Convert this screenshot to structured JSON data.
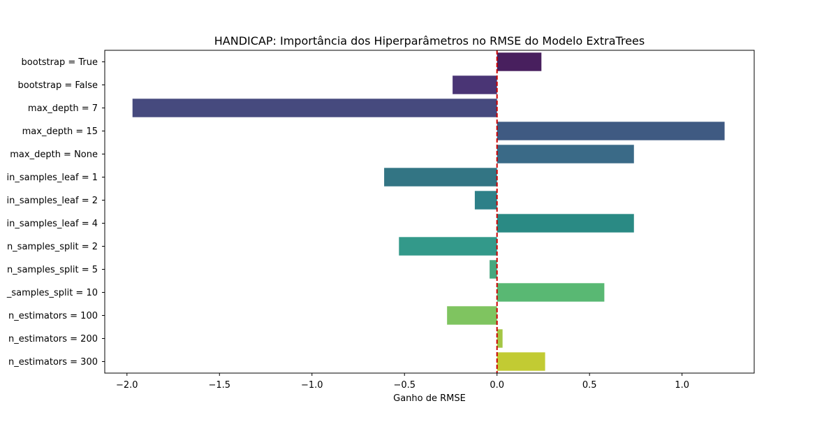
{
  "chart_data": {
    "type": "bar",
    "orientation": "horizontal",
    "title": "HANDICAP: Importância dos Hiperparâmetros no RMSE do Modelo ExtraTrees",
    "xlabel": "Ganho de RMSE",
    "ylabel": "",
    "xlim": [
      -2.12,
      1.39
    ],
    "xticks": [
      -2.0,
      -1.5,
      -1.0,
      -0.5,
      0.0,
      0.5,
      1.0
    ],
    "xtick_labels": [
      "−2.0",
      "−1.5",
      "−1.0",
      "−0.5",
      "0.0",
      "0.5",
      "1.0"
    ],
    "grid": false,
    "legend": "none",
    "reference_line": {
      "x": 0.0,
      "style": "dashed",
      "color": "#cc0000"
    },
    "categories": [
      "bootstrap = True",
      "bootstrap = False",
      "max_depth = 7",
      "max_depth = 15",
      "max_depth = None",
      "in_samples_leaf = 1",
      "in_samples_leaf = 2",
      "in_samples_leaf = 4",
      "n_samples_split = 2",
      "n_samples_split = 5",
      "_samples_split = 10",
      "n_estimators = 100",
      "n_estimators = 200",
      "n_estimators = 300"
    ],
    "values": [
      0.24,
      -0.24,
      -1.97,
      1.23,
      0.74,
      -0.61,
      -0.12,
      0.74,
      -0.53,
      -0.04,
      0.58,
      -0.27,
      0.03,
      0.26
    ],
    "colors": [
      "#481f5e",
      "#4a3575",
      "#464a7e",
      "#3f5a82",
      "#3a6a87",
      "#337584",
      "#2e8088",
      "#2a8a84",
      "#33998a",
      "#47a77e",
      "#59b873",
      "#7fc460",
      "#a4c645",
      "#c2cb33"
    ]
  }
}
